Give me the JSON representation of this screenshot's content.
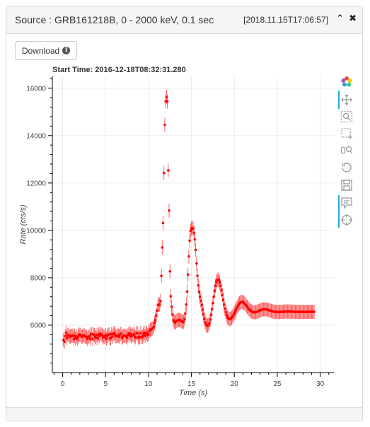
{
  "header": {
    "title": "Source : GRB161218B, 0 - 2000 keV, 0.1 sec",
    "timestamp": "[2018.11.15T17:06:57]",
    "collapse_glyph": "⌃",
    "close_glyph": "✖"
  },
  "download": {
    "label": "Download",
    "info_glyph": "i"
  },
  "toolbar": [
    {
      "icon": "bokeh-logo-icon"
    },
    {
      "icon": "pan-icon"
    },
    {
      "icon": "box-zoom-icon"
    },
    {
      "icon": "box-select-icon"
    },
    {
      "icon": "wheel-zoom-icon"
    },
    {
      "icon": "reset-icon"
    },
    {
      "icon": "save-icon"
    },
    {
      "icon": "hover-icon"
    },
    {
      "icon": "crosshair-icon"
    }
  ],
  "chart_data": {
    "type": "scatter",
    "title": "Start Time: 2016-12-18T08:32:31.280",
    "xlabel": "Time  (s)",
    "ylabel": "Rate  (cts/s)",
    "xlim": [
      -1.2,
      31.6
    ],
    "ylim": [
      4000,
      16500
    ],
    "xticks": [
      0,
      5,
      10,
      15,
      20,
      25,
      30
    ],
    "yticks": [
      6000,
      8000,
      10000,
      12000,
      14000,
      16000
    ],
    "grid": true,
    "marker_color": "#ff0000",
    "error_bar": "±300 cts/s",
    "x": {
      "start": 0.1,
      "step": 0.1,
      "count": 300
    },
    "y": [
      5380,
      5305,
      5540,
      5683,
      5451,
      5575,
      5598,
      5510,
      5525,
      5525,
      5570,
      5549,
      5419,
      5559,
      5453,
      5526,
      5413,
      5513,
      5601,
      5597,
      5593,
      5505,
      5528,
      5553,
      5577,
      5522,
      5508,
      5506,
      5418,
      5508,
      5532,
      5425,
      5623,
      5621,
      5419,
      5610,
      5578,
      5500,
      5476,
      5593,
      5448,
      5618,
      5549,
      5648,
      5611,
      5571,
      5490,
      5530,
      5495,
      5584,
      5430,
      5542,
      5594,
      5624,
      5442,
      5455,
      5629,
      5520,
      5636,
      5669,
      5588,
      5539,
      5522,
      5560,
      5560,
      5519,
      5617,
      5635,
      5466,
      5523,
      5559,
      5558,
      5539,
      5538,
      5469,
      5584,
      5653,
      5550,
      5640,
      5532,
      5576,
      5571,
      5628,
      5529,
      5483,
      5660,
      5658,
      5472,
      5515,
      5491,
      5670,
      5506,
      5506,
      5594,
      5679,
      5555,
      5622,
      5684,
      5580,
      5619,
      5744,
      5813,
      5819,
      5828,
      5867,
      5933,
      6093,
      6216,
      6400,
      6617,
      6853,
      6859,
      6875,
      7014,
      8081,
      9280,
      10314,
      12422,
      14453,
      15444,
      15618,
      15443,
      12534,
      10835,
      8273,
      7220,
      6781,
      6441,
      6213,
      6128,
      6113,
      6161,
      6186,
      6210,
      6218,
      6229,
      6215,
      6179,
      6151,
      6133,
      6154,
      6260,
      6490,
      6871,
      7420,
      8133,
      8903,
      9568,
      9978,
      10079,
      10104,
      10070,
      9902,
      9616,
      9180,
      8600,
      8082,
      7678,
      7393,
      7197,
      7025,
      6847,
      6657,
      6457,
      6268,
      6122,
      6032,
      5985,
      5980,
      6013,
      6096,
      6236,
      6430,
      6670,
      6935,
      7203,
      7452,
      7662,
      7816,
      7903,
      7924,
      7887,
      7796,
      7658,
      7480,
      7277,
      7065,
      6866,
      6693,
      6548,
      6431,
      6344,
      6286,
      6258,
      6257,
      6277,
      6315,
      6368,
      6432,
      6504,
      6583,
      6663,
      6741,
      6813,
      6875,
      6925,
      6959,
      6978,
      6981,
      6969,
      6944,
      6910,
      6868,
      6821,
      6773,
      6726,
      6682,
      6642,
      6608,
      6581,
      6561,
      6549,
      6543,
      6544,
      6551,
      6562,
      6576,
      6592,
      6609,
      6625,
      6640,
      6653,
      6663,
      6669,
      6671,
      6670,
      6665,
      6658,
      6649,
      6638,
      6626,
      6614,
      6602,
      6591,
      6581,
      6573,
      6566,
      6561,
      6557,
      6555,
      6555,
      6555,
      6557,
      6559,
      6562,
      6565,
      6568,
      6571,
      6573,
      6575,
      6576,
      6577,
      6577,
      6576,
      6575,
      6574,
      6572,
      6570,
      6568,
      6566,
      6564,
      6563,
      6561,
      6560,
      6559,
      6559,
      6559,
      6559,
      6559,
      6560,
      6560,
      6561,
      6562,
      6563,
      6563,
      6564,
      6564,
      6564,
      6564,
      6564,
      6564,
      6564,
      6564
    ]
  }
}
